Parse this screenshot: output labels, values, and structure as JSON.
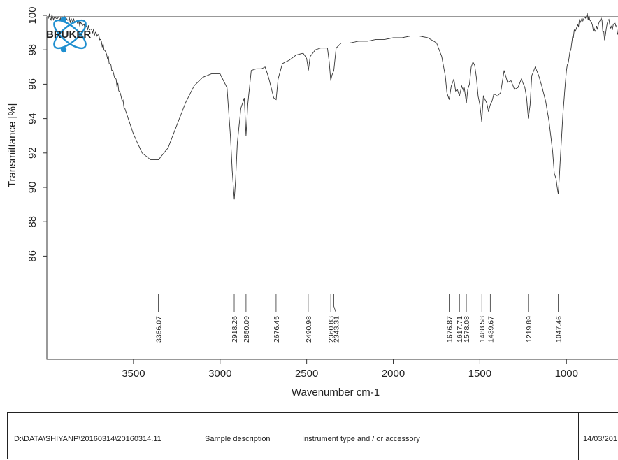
{
  "logo": {
    "text": "BRUKER",
    "icon": "atom-orbit-icon",
    "colors": {
      "orbit": "#1f8fd0",
      "text": "#111111"
    }
  },
  "chart_data": {
    "type": "line",
    "title": "",
    "xlabel": "Wavenumber cm-1",
    "ylabel": "Transmittance [%]",
    "xlim": [
      4000,
      650
    ],
    "ylim": [
      84,
      100
    ],
    "x_reversed": true,
    "xticks": [
      3500,
      3000,
      2500,
      2000,
      1500,
      1000
    ],
    "yticks": [
      86,
      88,
      90,
      92,
      94,
      96,
      98,
      100
    ],
    "grid": false,
    "line_color": "#333333",
    "series": [
      {
        "x": [
          3990,
          3900,
          3850,
          3800,
          3750,
          3700,
          3650,
          3600,
          3550,
          3500,
          3450,
          3400,
          3356,
          3300,
          3250,
          3200,
          3150,
          3100,
          3050,
          3000,
          2960,
          2940,
          2930,
          2918,
          2910,
          2900,
          2880,
          2860,
          2850,
          2840,
          2820,
          2790,
          2760,
          2740,
          2720,
          2700,
          2690,
          2676,
          2665,
          2640,
          2600,
          2560,
          2520,
          2500,
          2490,
          2480,
          2450,
          2420,
          2380,
          2370,
          2361,
          2355,
          2343,
          2330,
          2300,
          2250,
          2200,
          2150,
          2100,
          2050,
          2000,
          1950,
          1900,
          1850,
          1800,
          1750,
          1720,
          1700,
          1690,
          1677,
          1665,
          1650,
          1640,
          1630,
          1618,
          1605,
          1595,
          1590,
          1578,
          1570,
          1560,
          1550,
          1540,
          1530,
          1520,
          1510,
          1500,
          1489,
          1480,
          1470,
          1460,
          1450,
          1440,
          1430,
          1420,
          1410,
          1400,
          1380,
          1360,
          1340,
          1320,
          1300,
          1280,
          1260,
          1240,
          1230,
          1220,
          1210,
          1200,
          1180,
          1160,
          1140,
          1120,
          1100,
          1080,
          1070,
          1060,
          1055,
          1047,
          1040,
          1030,
          1020,
          1010,
          1000,
          980,
          960,
          940,
          920,
          900,
          880,
          860,
          840,
          820,
          800,
          780,
          760,
          740,
          720,
          700,
          680,
          660,
          650
        ],
        "y": [
          99.9,
          99.8,
          99.7,
          99.5,
          99.2,
          98.8,
          97.6,
          96.2,
          94.6,
          93.1,
          92.0,
          91.6,
          91.6,
          92.3,
          93.6,
          94.9,
          95.9,
          96.4,
          96.6,
          96.6,
          95.8,
          93.0,
          91.0,
          89.3,
          90.5,
          92.6,
          94.6,
          95.2,
          93.0,
          94.8,
          96.8,
          96.9,
          96.9,
          97.0,
          96.4,
          95.6,
          95.2,
          95.1,
          96.3,
          97.2,
          97.4,
          97.7,
          97.8,
          97.5,
          96.8,
          97.6,
          98.0,
          98.1,
          98.1,
          97.3,
          96.2,
          96.5,
          96.8,
          98.1,
          98.4,
          98.4,
          98.5,
          98.5,
          98.6,
          98.6,
          98.7,
          98.7,
          98.8,
          98.8,
          98.7,
          98.4,
          97.6,
          96.5,
          95.5,
          95.1,
          95.9,
          96.3,
          95.6,
          95.7,
          95.3,
          95.9,
          95.6,
          95.8,
          94.9,
          95.7,
          96.0,
          97.0,
          97.3,
          97.1,
          96.4,
          95.3,
          94.8,
          93.8,
          95.3,
          95.1,
          94.9,
          94.4,
          94.8,
          95.0,
          95.4,
          95.4,
          95.3,
          95.5,
          96.8,
          96.1,
          96.2,
          95.7,
          95.8,
          96.3,
          95.8,
          95.2,
          94.0,
          94.8,
          96.5,
          97.0,
          96.5,
          95.8,
          95.0,
          93.8,
          92.1,
          90.8,
          90.5,
          90.1,
          89.6,
          90.8,
          92.6,
          94.3,
          95.6,
          96.8,
          97.8,
          98.9,
          99.3,
          99.7,
          99.8,
          100.0,
          99.7,
          99.1,
          99.3,
          99.9,
          98.6,
          99.8,
          99.2,
          99.6,
          98.9,
          99.5,
          99.6,
          99.6
        ]
      }
    ],
    "peaks": [
      {
        "x": 3356.07,
        "label": "3356.07"
      },
      {
        "x": 2918.26,
        "label": "2918.26"
      },
      {
        "x": 2850.09,
        "label": "2850.09"
      },
      {
        "x": 2676.45,
        "label": "2676.45"
      },
      {
        "x": 2490.98,
        "label": "2490.98"
      },
      {
        "x": 2360.83,
        "label": "2360.83"
      },
      {
        "x": 2343.31,
        "label": "2343.31"
      },
      {
        "x": 1676.87,
        "label": "1676.87"
      },
      {
        "x": 1617.71,
        "label": "1617.71"
      },
      {
        "x": 1578.08,
        "label": "1578.08"
      },
      {
        "x": 1488.58,
        "label": "1488.58"
      },
      {
        "x": 1439.67,
        "label": "1439.67"
      },
      {
        "x": 1219.89,
        "label": "1219.89"
      },
      {
        "x": 1047.46,
        "label": "1047.46"
      }
    ]
  },
  "footer": {
    "file_path": "D:\\DATA\\SHIYANP\\20160314\\20160314.11",
    "sample_description": "Sample description",
    "instrument": "Instrument type and / or accessory",
    "date": "14/03/201"
  }
}
